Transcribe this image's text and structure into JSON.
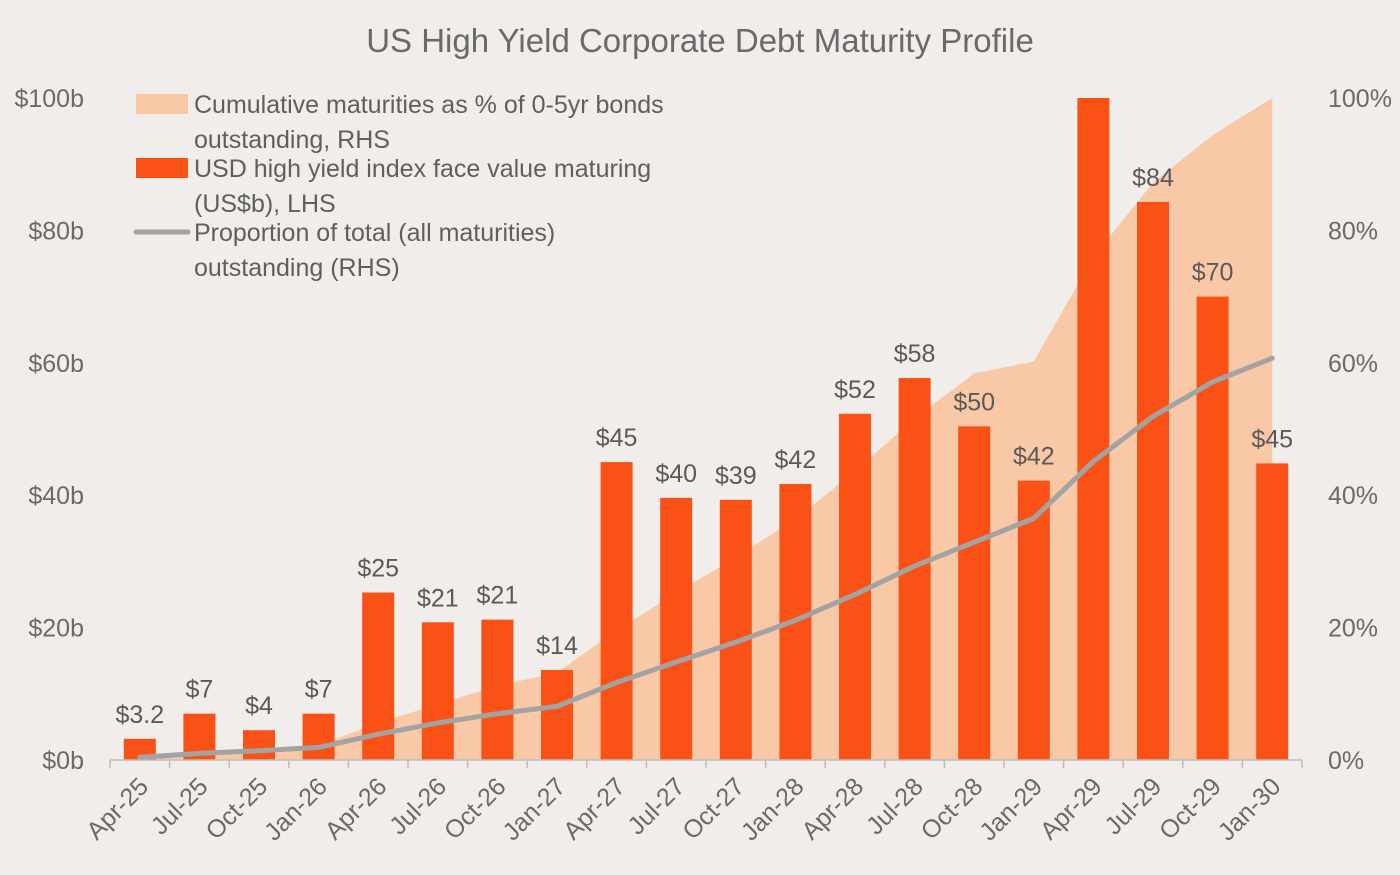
{
  "chart_data": {
    "type": "bar",
    "title": "US High Yield Corporate Debt Maturity Profile",
    "categories": [
      "Apr-25",
      "Jul-25",
      "Oct-25",
      "Jan-26",
      "Apr-26",
      "Jul-26",
      "Oct-26",
      "Jan-27",
      "Apr-27",
      "Jul-27",
      "Oct-27",
      "Jan-28",
      "Apr-28",
      "Jul-28",
      "Oct-28",
      "Jan-29",
      "Apr-29",
      "Jul-29",
      "Oct-29",
      "Jan-30"
    ],
    "left_axis": {
      "min": 0,
      "max": 100,
      "ticks": [
        0,
        20,
        40,
        60,
        80,
        100
      ],
      "tick_labels": [
        "$0b",
        "$20b",
        "$40b",
        "$60b",
        "$80b",
        "$100b"
      ]
    },
    "right_axis": {
      "min": 0,
      "max": 100,
      "ticks": [
        0,
        20,
        40,
        60,
        80,
        100
      ],
      "tick_labels": [
        "0%",
        "20%",
        "40%",
        "60%",
        "80%",
        "100%"
      ]
    },
    "legend_position": "top-left",
    "grid": false,
    "series": [
      {
        "name": "Cumulative maturities as % of 0-5yr bonds outstanding, RHS",
        "legend_lines": [
          "Cumulative maturities as % of 0-5yr bonds",
          "outstanding, RHS"
        ],
        "type": "area",
        "axis": "right",
        "color": "#f9c8a6",
        "values": [
          0.5,
          1.2,
          1.7,
          2.2,
          5.6,
          8.4,
          11.2,
          13.2,
          19.6,
          25.2,
          30.6,
          36.4,
          43.6,
          51.6,
          58.4,
          60.2,
          76.0,
          87.2,
          94.4,
          100
        ]
      },
      {
        "name": "USD high yield index face value maturing (US$b), LHS",
        "legend_lines": [
          "USD high yield index face value maturing",
          "(US$b), LHS"
        ],
        "type": "bar",
        "axis": "left",
        "color": "#fa5116",
        "values": [
          3.2,
          7,
          4.5,
          7,
          25.3,
          20.8,
          21.2,
          13.6,
          45,
          39.6,
          39.3,
          41.7,
          52.3,
          57.7,
          50.4,
          42.2,
          100,
          84.3,
          70,
          44.8
        ],
        "labels": [
          "$3.2",
          "$7",
          "$4",
          "$7",
          "$25",
          "$21",
          "$21",
          "$14",
          "$45",
          "$40",
          "$39",
          "$42",
          "$52",
          "$58",
          "$50",
          "$42",
          "",
          "$84",
          "$70",
          "$45"
        ]
      },
      {
        "name": "Proportion of total (all maturities) outstanding (RHS)",
        "legend_lines": [
          "Proportion of total (all maturities)",
          "outstanding (RHS)"
        ],
        "type": "line",
        "axis": "right",
        "color": "#a3a3a3",
        "values": [
          0.4,
          1.0,
          1.4,
          1.9,
          3.9,
          5.6,
          7.0,
          8.1,
          11.7,
          14.8,
          17.8,
          21.1,
          25.0,
          29.3,
          32.9,
          36.5,
          45.1,
          51.9,
          57.1,
          60.7
        ]
      }
    ]
  }
}
